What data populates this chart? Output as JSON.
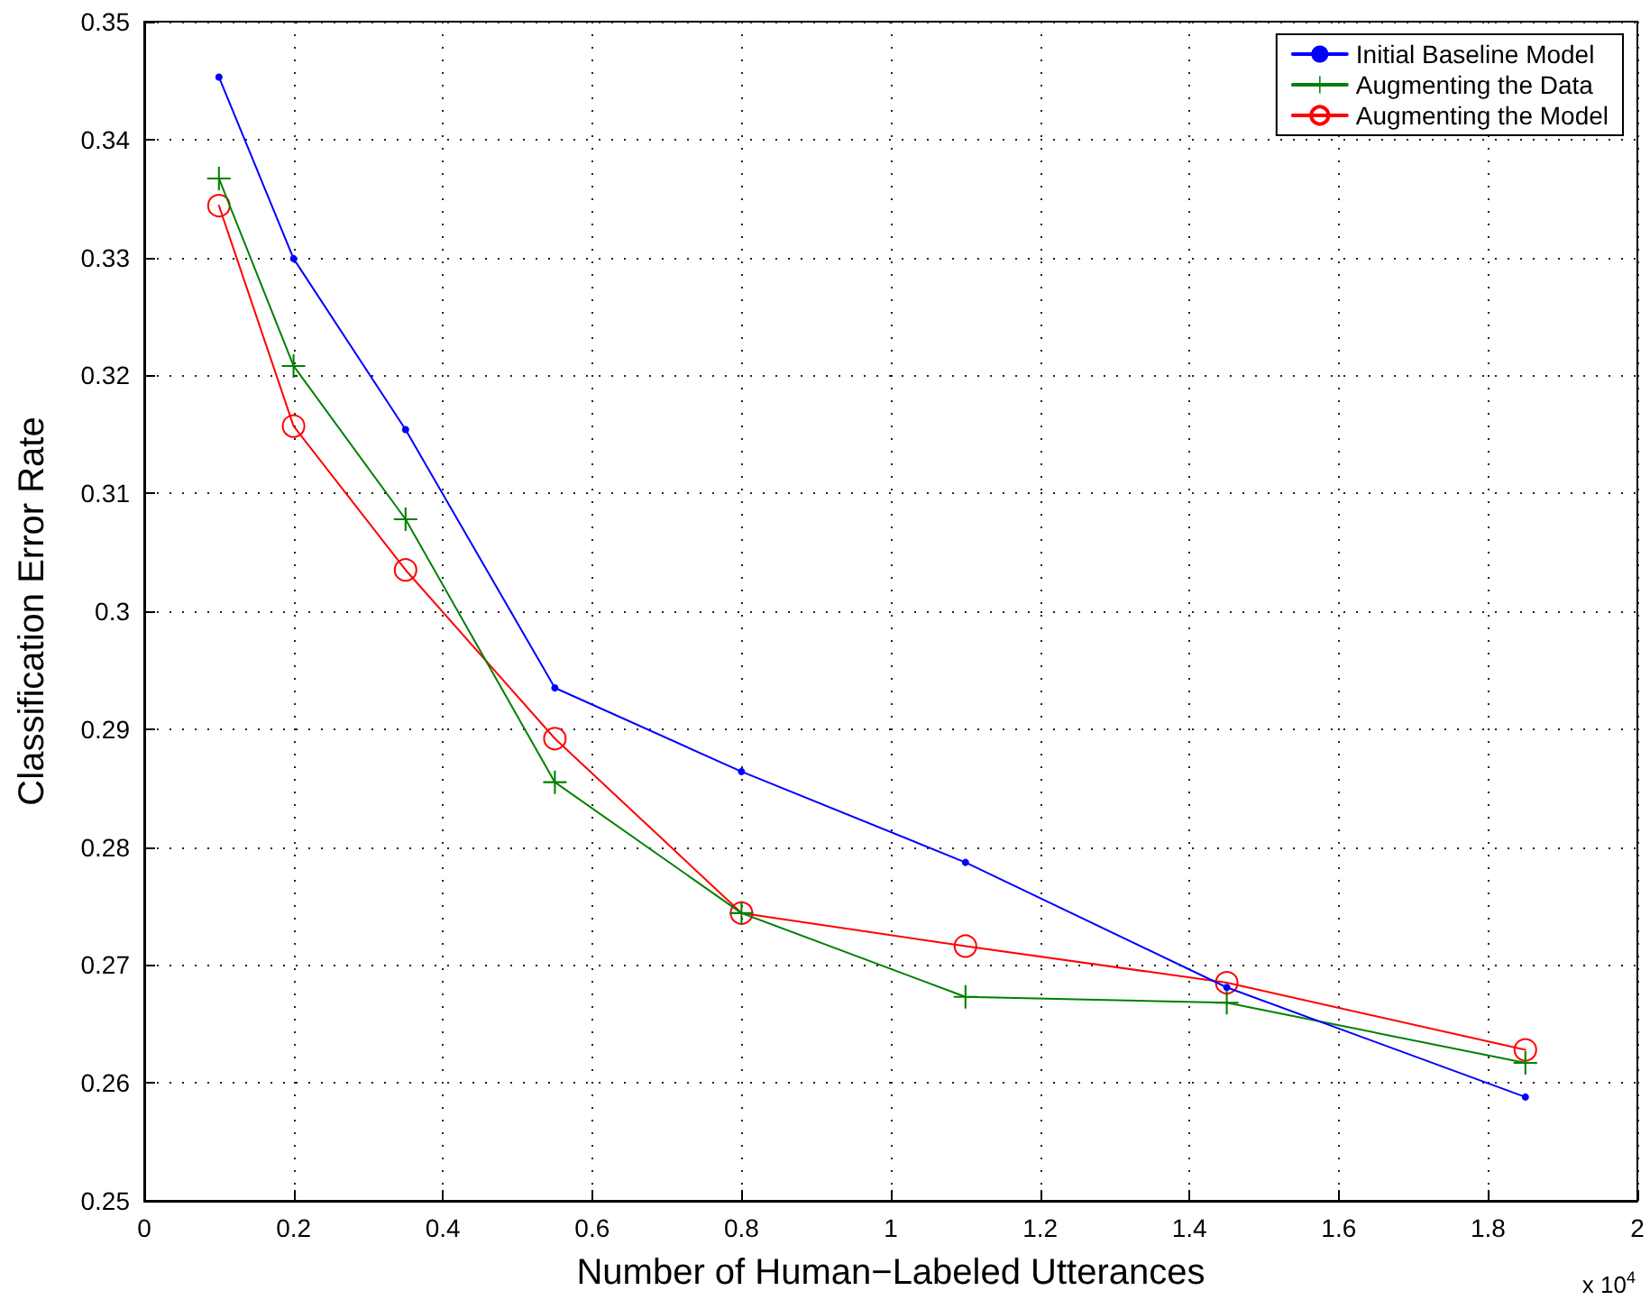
{
  "chart_data": {
    "type": "line",
    "xlabel": "Number of Human−Labeled Utterances",
    "ylabel": "Classification Error Rate",
    "x": [
      0.1,
      0.2,
      0.35,
      0.55,
      0.8,
      1.1,
      1.45,
      1.85
    ],
    "series": [
      {
        "name": "Initial Baseline Model",
        "color": "#0000ff",
        "marker": "circle",
        "values": [
          0.3453,
          0.3299,
          0.3154,
          0.2935,
          0.2864,
          0.2787,
          0.2681,
          0.2588
        ]
      },
      {
        "name": "Augmenting the Data",
        "color": "#008000",
        "marker": "cross",
        "values": [
          0.3367,
          0.3208,
          0.3078,
          0.2855,
          0.2744,
          0.2673,
          0.2668,
          0.2617
        ]
      },
      {
        "name": "Augmenting the Model",
        "color": "#ff0000",
        "marker": "circle-open",
        "values": [
          0.3344,
          0.3157,
          0.3035,
          0.2892,
          0.2744,
          0.2716,
          0.2685,
          0.2628
        ]
      }
    ],
    "xlim": [
      0,
      2
    ],
    "xticks": [
      0,
      0.2,
      0.4,
      0.6,
      0.8,
      1,
      1.2,
      1.4,
      1.6,
      1.8,
      2
    ],
    "ylim": [
      0.25,
      0.35
    ],
    "yticks": [
      0.25,
      0.26,
      0.27,
      0.28,
      0.29,
      0.3,
      0.31,
      0.32,
      0.33,
      0.34,
      0.35
    ],
    "grid": true,
    "legend": "top right",
    "line_style": "solid",
    "annotations": [
      "x 10$^{4}$"
    ]
  }
}
